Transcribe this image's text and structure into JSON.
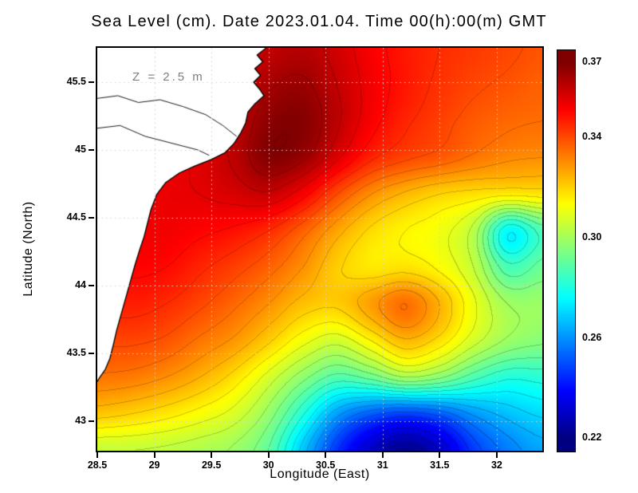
{
  "title": "Sea Level (cm). Date 2023.01.04. Time 00(h):00(m) GMT",
  "annotation": "Z = 2.5 m",
  "axes": {
    "x": {
      "label": "Longitude (East)",
      "range": [
        28.5,
        32.399
      ],
      "ticks": [
        {
          "v": 28.5,
          "label": "28.5"
        },
        {
          "v": 29,
          "label": "29"
        },
        {
          "v": 29.5,
          "label": "29.5"
        },
        {
          "v": 30,
          "label": "30"
        },
        {
          "v": 30.5,
          "label": "30.5"
        },
        {
          "v": 31,
          "label": "31"
        },
        {
          "v": 31.5,
          "label": "31.5"
        },
        {
          "v": 32,
          "label": "32"
        }
      ]
    },
    "y": {
      "label": "Latitude (North)",
      "range": [
        42.78,
        45.753
      ],
      "ticks": [
        {
          "v": 43,
          "label": "43"
        },
        {
          "v": 43.5,
          "label": "43.5"
        },
        {
          "v": 44,
          "label": "44"
        },
        {
          "v": 44.5,
          "label": "44.5"
        },
        {
          "v": 45,
          "label": "45"
        },
        {
          "v": 45.5,
          "label": "45.5"
        }
      ]
    }
  },
  "colorbar": {
    "range": [
      0.215,
      0.375
    ],
    "ticks": [
      {
        "v": 0.37,
        "label": "0.37"
      },
      {
        "v": 0.34,
        "label": "0.34"
      },
      {
        "v": 0.3,
        "label": "0.30"
      },
      {
        "v": 0.26,
        "label": "0.26"
      },
      {
        "v": 0.22,
        "label": "0.22"
      }
    ]
  },
  "chart_data": {
    "type": "heatmap",
    "title": "Sea Level (cm). Date 2023.01.04. Time 00(h):00(m) GMT",
    "xlabel": "Longitude (East)",
    "ylabel": "Latitude (North)",
    "annotation": "Z = 2.5 m",
    "colormap": "jet",
    "value_range": [
      0.22,
      0.37
    ],
    "contour_interval": 0.005,
    "x_lon": [
      28.5,
      28.8,
      29.1,
      29.4,
      29.7,
      30.0,
      30.3,
      30.6,
      30.9,
      31.2,
      31.5,
      31.8,
      32.1,
      32.4
    ],
    "y_lat": [
      45.75,
      45.48,
      45.21,
      44.94,
      44.67,
      44.4,
      44.13,
      43.86,
      43.59,
      43.32,
      43.05,
      42.78
    ],
    "values": [
      [
        0.348,
        0.348,
        0.349,
        0.351,
        0.354,
        0.36,
        0.362,
        0.358,
        0.352,
        0.348,
        0.345,
        0.343,
        0.341,
        0.339
      ],
      [
        0.35,
        0.35,
        0.351,
        0.353,
        0.357,
        0.364,
        0.366,
        0.36,
        0.353,
        0.348,
        0.344,
        0.341,
        0.339,
        0.337
      ],
      [
        0.351,
        0.351,
        0.352,
        0.355,
        0.36,
        0.368,
        0.369,
        0.361,
        0.352,
        0.346,
        0.342,
        0.338,
        0.336,
        0.335
      ],
      [
        0.351,
        0.352,
        0.353,
        0.356,
        0.361,
        0.369,
        0.366,
        0.356,
        0.346,
        0.341,
        0.338,
        0.334,
        0.331,
        0.33
      ],
      [
        0.352,
        0.353,
        0.354,
        0.355,
        0.357,
        0.359,
        0.352,
        0.34,
        0.33,
        0.324,
        0.32,
        0.318,
        0.316,
        0.317
      ],
      [
        0.352,
        0.353,
        0.353,
        0.351,
        0.349,
        0.345,
        0.337,
        0.327,
        0.319,
        0.315,
        0.312,
        0.303,
        0.276,
        0.287
      ],
      [
        0.35,
        0.351,
        0.35,
        0.346,
        0.342,
        0.337,
        0.33,
        0.321,
        0.317,
        0.318,
        0.314,
        0.305,
        0.287,
        0.292
      ],
      [
        0.346,
        0.347,
        0.345,
        0.341,
        0.336,
        0.33,
        0.323,
        0.321,
        0.328,
        0.335,
        0.325,
        0.311,
        0.3,
        0.299
      ],
      [
        0.341,
        0.341,
        0.339,
        0.334,
        0.329,
        0.321,
        0.312,
        0.307,
        0.315,
        0.324,
        0.318,
        0.307,
        0.299,
        0.296
      ],
      [
        0.334,
        0.333,
        0.33,
        0.325,
        0.318,
        0.308,
        0.297,
        0.288,
        0.292,
        0.3,
        0.296,
        0.287,
        0.281,
        0.282
      ],
      [
        0.322,
        0.32,
        0.317,
        0.313,
        0.308,
        0.298,
        0.281,
        0.262,
        0.252,
        0.248,
        0.252,
        0.261,
        0.267,
        0.271
      ],
      [
        0.305,
        0.305,
        0.304,
        0.302,
        0.299,
        0.29,
        0.268,
        0.246,
        0.23,
        0.222,
        0.23,
        0.247,
        0.257,
        0.263
      ]
    ],
    "land": {
      "coast": [
        [
          29.98,
          45.753
        ],
        [
          29.9,
          45.7
        ],
        [
          29.95,
          45.65
        ],
        [
          29.88,
          45.6
        ],
        [
          29.93,
          45.55
        ],
        [
          29.87,
          45.5
        ],
        [
          29.92,
          45.45
        ],
        [
          29.96,
          45.4
        ],
        [
          29.88,
          45.34
        ],
        [
          29.82,
          45.28
        ],
        [
          29.8,
          45.2
        ],
        [
          29.76,
          45.13
        ],
        [
          29.7,
          45.05
        ],
        [
          29.62,
          44.98
        ],
        [
          29.5,
          44.93
        ],
        [
          29.35,
          44.88
        ],
        [
          29.22,
          44.83
        ],
        [
          29.1,
          44.76
        ],
        [
          29.02,
          44.67
        ],
        [
          28.97,
          44.56
        ],
        [
          28.94,
          44.46
        ],
        [
          28.91,
          44.36
        ],
        [
          28.87,
          44.26
        ],
        [
          28.83,
          44.15
        ],
        [
          28.79,
          44.03
        ],
        [
          28.75,
          43.91
        ],
        [
          28.71,
          43.79
        ],
        [
          28.67,
          43.67
        ],
        [
          28.64,
          43.56
        ],
        [
          28.61,
          43.46
        ],
        [
          28.57,
          43.38
        ],
        [
          28.52,
          43.32
        ],
        [
          28.5,
          43.29
        ]
      ],
      "rivers": [
        [
          [
            28.5,
            45.38
          ],
          [
            28.68,
            45.4
          ],
          [
            28.86,
            45.35
          ],
          [
            29.05,
            45.37
          ],
          [
            29.25,
            45.32
          ],
          [
            29.45,
            45.26
          ],
          [
            29.6,
            45.18
          ],
          [
            29.72,
            45.1
          ]
        ],
        [
          [
            28.5,
            45.16
          ],
          [
            28.7,
            45.18
          ],
          [
            28.92,
            45.1
          ],
          [
            29.15,
            45.05
          ],
          [
            29.38,
            45.0
          ],
          [
            29.48,
            44.96
          ]
        ]
      ]
    }
  }
}
